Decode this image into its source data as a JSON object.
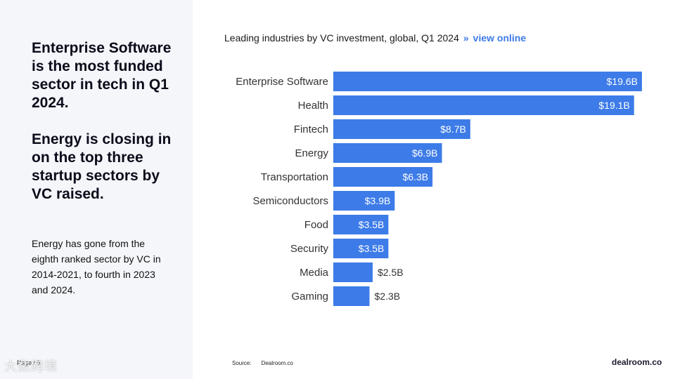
{
  "left": {
    "headline1": "Enterprise Software is the most funded sector in tech in Q1 2024.",
    "headline2": "Energy is closing in on the top three startup sectors by VC raised.",
    "body": "Energy has gone from the eighth ranked sector by VC in 2014-2021, to fourth in 2023 and 2024.",
    "page": "Page / 6",
    "watermark": "大数跨境"
  },
  "header": {
    "title": "Leading industries by VC investment, global, Q1 2024",
    "separator": "»",
    "link_label": "view online"
  },
  "footer": {
    "source_label": "Source:",
    "source_value": "Dealroom.co",
    "brand": "dealroom.co"
  },
  "colors": {
    "bar": "#3d7be8",
    "label_inside": "#ffffff",
    "label_outside": "#333333"
  },
  "chart_data": {
    "type": "bar",
    "orientation": "horizontal",
    "title": "Leading industries by VC investment, global, Q1 2024",
    "categories": [
      "Enterprise Software",
      "Health",
      "Fintech",
      "Energy",
      "Transportation",
      "Semiconductors",
      "Food",
      "Security",
      "Media",
      "Gaming"
    ],
    "values": [
      19.6,
      19.1,
      8.7,
      6.9,
      6.3,
      3.9,
      3.5,
      3.5,
      2.5,
      2.3
    ],
    "labels": [
      "$19.6B",
      "$19.1B",
      "$8.7B",
      "$6.9B",
      "$6.3B",
      "$3.9B",
      "$3.5B",
      "$3.5B",
      "$2.5B",
      "$2.3B"
    ],
    "unit": "$B",
    "xlim": [
      0,
      19.6
    ],
    "grid": false
  }
}
